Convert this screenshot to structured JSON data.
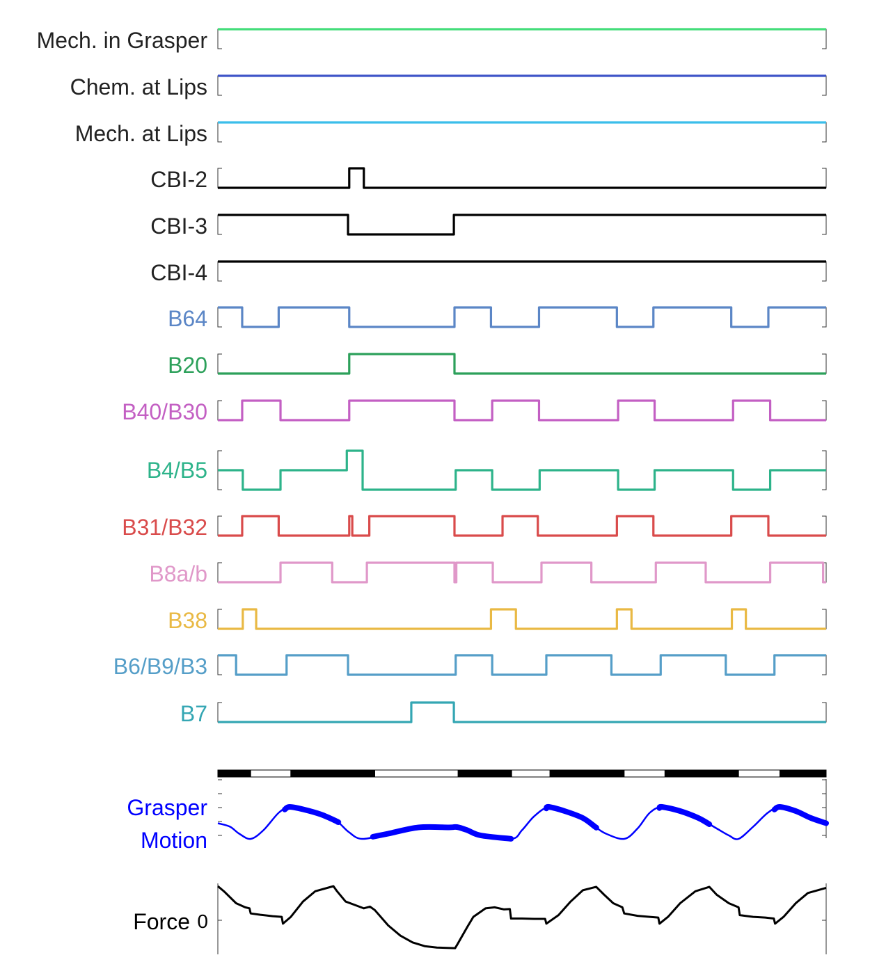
{
  "chart_data": {
    "type": "line",
    "subtype": "stacked binary traces with continuous bottom panels",
    "x_range": [
      0,
      1
    ],
    "series": [
      {
        "name": "Mech. in Grasper",
        "color": "#44dd7a",
        "kind": "binary",
        "states": [
          [
            0.0,
            1
          ]
        ]
      },
      {
        "name": "Chem. at Lips",
        "color": "#3f55c8",
        "kind": "binary",
        "states": [
          [
            0.0,
            1
          ]
        ]
      },
      {
        "name": "Mech. at Lips",
        "color": "#3bbeea",
        "kind": "binary",
        "states": [
          [
            0.0,
            1
          ]
        ]
      },
      {
        "name": "CBI-2",
        "color": "#000000",
        "kind": "binary",
        "states": [
          [
            0.0,
            0
          ],
          [
            0.216,
            1
          ],
          [
            0.24,
            0
          ]
        ]
      },
      {
        "name": "CBI-3",
        "color": "#000000",
        "kind": "binary",
        "states": [
          [
            0.0,
            1
          ],
          [
            0.214,
            0
          ],
          [
            0.388,
            1
          ]
        ]
      },
      {
        "name": "CBI-4",
        "color": "#000000",
        "kind": "binary",
        "states": [
          [
            0.0,
            1
          ]
        ]
      },
      {
        "name": "B64",
        "color": "#5b86c6",
        "kind": "binary",
        "states": [
          [
            0.0,
            1
          ],
          [
            0.04,
            0
          ],
          [
            0.1,
            1
          ],
          [
            0.216,
            0
          ],
          [
            0.389,
            1
          ],
          [
            0.449,
            0
          ],
          [
            0.528,
            1
          ],
          [
            0.656,
            0
          ],
          [
            0.716,
            1
          ],
          [
            0.844,
            0
          ],
          [
            0.905,
            1
          ]
        ]
      },
      {
        "name": "B20",
        "color": "#2ca05a",
        "kind": "binary",
        "states": [
          [
            0.0,
            0
          ],
          [
            0.216,
            1
          ],
          [
            0.389,
            0
          ]
        ]
      },
      {
        "name": "B40/B30",
        "color": "#c35fc3",
        "kind": "binary",
        "states": [
          [
            0.0,
            0
          ],
          [
            0.04,
            1
          ],
          [
            0.103,
            0
          ],
          [
            0.216,
            1
          ],
          [
            0.389,
            0
          ],
          [
            0.451,
            1
          ],
          [
            0.528,
            0
          ],
          [
            0.658,
            1
          ],
          [
            0.718,
            0
          ],
          [
            0.847,
            1
          ],
          [
            0.908,
            0
          ]
        ]
      },
      {
        "name": "B4/B5",
        "color": "#2db38a",
        "kind": "multi",
        "states": [
          [
            0.0,
            1
          ],
          [
            0.041,
            0
          ],
          [
            0.103,
            1
          ],
          [
            0.212,
            2
          ],
          [
            0.238,
            0
          ],
          [
            0.391,
            1
          ],
          [
            0.451,
            0
          ],
          [
            0.529,
            1
          ],
          [
            0.658,
            0
          ],
          [
            0.718,
            1
          ],
          [
            0.847,
            0
          ],
          [
            0.908,
            1
          ]
        ]
      },
      {
        "name": "B31/B32",
        "color": "#d94b4b",
        "kind": "binary",
        "states": [
          [
            0.0,
            0
          ],
          [
            0.04,
            1
          ],
          [
            0.1,
            0
          ],
          [
            0.216,
            1
          ],
          [
            0.221,
            0
          ],
          [
            0.249,
            1
          ],
          [
            0.389,
            0
          ],
          [
            0.468,
            1
          ],
          [
            0.526,
            0
          ],
          [
            0.656,
            1
          ],
          [
            0.716,
            0
          ],
          [
            0.844,
            1
          ],
          [
            0.905,
            0
          ]
        ]
      },
      {
        "name": "B8a/b",
        "color": "#e098c9",
        "kind": "binary",
        "states": [
          [
            0.0,
            0
          ],
          [
            0.103,
            1
          ],
          [
            0.188,
            0
          ],
          [
            0.245,
            1
          ],
          [
            0.389,
            0
          ],
          [
            0.392,
            1
          ],
          [
            0.452,
            0
          ],
          [
            0.532,
            1
          ],
          [
            0.614,
            0
          ],
          [
            0.72,
            1
          ],
          [
            0.802,
            0
          ],
          [
            0.908,
            1
          ],
          [
            0.995,
            0
          ]
        ]
      },
      {
        "name": "B38",
        "color": "#e9b944",
        "kind": "binary",
        "states": [
          [
            0.0,
            0
          ],
          [
            0.041,
            1
          ],
          [
            0.063,
            0
          ],
          [
            0.449,
            1
          ],
          [
            0.49,
            0
          ],
          [
            0.656,
            1
          ],
          [
            0.68,
            0
          ],
          [
            0.845,
            1
          ],
          [
            0.868,
            0
          ]
        ]
      },
      {
        "name": "B6/B9/B3",
        "color": "#559ec8",
        "kind": "binary",
        "states": [
          [
            0.0,
            1
          ],
          [
            0.03,
            0
          ],
          [
            0.113,
            1
          ],
          [
            0.214,
            0
          ],
          [
            0.391,
            1
          ],
          [
            0.451,
            0
          ],
          [
            0.54,
            1
          ],
          [
            0.647,
            0
          ],
          [
            0.728,
            1
          ],
          [
            0.835,
            0
          ],
          [
            0.915,
            1
          ]
        ]
      },
      {
        "name": "B7",
        "color": "#34a6b3",
        "kind": "binary",
        "states": [
          [
            0.0,
            0
          ],
          [
            0.318,
            1
          ],
          [
            0.388,
            0
          ]
        ]
      }
    ],
    "phase_bar": {
      "colors": {
        "black": "#000000",
        "white": "#ffffff"
      },
      "segments": [
        [
          0.0,
          0.054,
          "black"
        ],
        [
          0.054,
          0.12,
          "white"
        ],
        [
          0.12,
          0.258,
          "black"
        ],
        [
          0.258,
          0.395,
          "white"
        ],
        [
          0.395,
          0.483,
          "black"
        ],
        [
          0.483,
          0.546,
          "white"
        ],
        [
          0.546,
          0.668,
          "black"
        ],
        [
          0.668,
          0.735,
          "white"
        ],
        [
          0.735,
          0.856,
          "black"
        ],
        [
          0.856,
          0.924,
          "white"
        ],
        [
          0.924,
          1.0,
          "black"
        ]
      ]
    },
    "grasper_motion": {
      "name": "Grasper Motion",
      "color": "#0000ff",
      "y_range": [
        0,
        1
      ],
      "points": [
        [
          0.0,
          0.45
        ],
        [
          0.02,
          0.35
        ],
        [
          0.035,
          0.15
        ],
        [
          0.054,
          0.0
        ],
        [
          0.075,
          0.25
        ],
        [
          0.1,
          0.75
        ],
        [
          0.118,
          0.92
        ],
        [
          0.14,
          0.85
        ],
        [
          0.17,
          0.7
        ],
        [
          0.196,
          0.5
        ],
        [
          0.215,
          0.2
        ],
        [
          0.237,
          0.0
        ],
        [
          0.28,
          0.15
        ],
        [
          0.33,
          0.33
        ],
        [
          0.38,
          0.33
        ],
        [
          0.393,
          0.34
        ],
        [
          0.41,
          0.25
        ],
        [
          0.432,
          0.1
        ],
        [
          0.483,
          0.0
        ],
        [
          0.5,
          0.25
        ],
        [
          0.52,
          0.65
        ],
        [
          0.544,
          0.92
        ],
        [
          0.57,
          0.8
        ],
        [
          0.6,
          0.6
        ],
        [
          0.62,
          0.35
        ],
        [
          0.638,
          0.15
        ],
        [
          0.668,
          0.0
        ],
        [
          0.69,
          0.3
        ],
        [
          0.71,
          0.75
        ],
        [
          0.73,
          0.92
        ],
        [
          0.76,
          0.8
        ],
        [
          0.79,
          0.6
        ],
        [
          0.82,
          0.3
        ],
        [
          0.84,
          0.1
        ],
        [
          0.856,
          0.0
        ],
        [
          0.88,
          0.35
        ],
        [
          0.904,
          0.75
        ],
        [
          0.924,
          0.92
        ],
        [
          0.95,
          0.8
        ],
        [
          0.975,
          0.6
        ],
        [
          1.0,
          0.45
        ]
      ],
      "thick_ranges": [
        [
          0.11,
          0.197
        ],
        [
          0.255,
          0.482
        ],
        [
          0.54,
          0.622
        ],
        [
          0.726,
          0.808
        ],
        [
          0.915,
          1.0
        ]
      ]
    },
    "force": {
      "name": "Force",
      "color": "#000000",
      "zero_label": "0",
      "y_range": [
        -1,
        1
      ],
      "points": [
        [
          0.0,
          1.0
        ],
        [
          0.01,
          0.85
        ],
        [
          0.03,
          0.5
        ],
        [
          0.045,
          0.38
        ],
        [
          0.052,
          0.35
        ],
        [
          0.054,
          0.2
        ],
        [
          0.07,
          0.16
        ],
        [
          0.09,
          0.12
        ],
        [
          0.105,
          0.1
        ],
        [
          0.107,
          -0.1
        ],
        [
          0.12,
          0.1
        ],
        [
          0.14,
          0.55
        ],
        [
          0.16,
          0.85
        ],
        [
          0.19,
          1.0
        ],
        [
          0.196,
          0.85
        ],
        [
          0.21,
          0.55
        ],
        [
          0.24,
          0.35
        ],
        [
          0.25,
          0.4
        ],
        [
          0.258,
          0.3
        ],
        [
          0.28,
          -0.15
        ],
        [
          0.3,
          -0.45
        ],
        [
          0.32,
          -0.65
        ],
        [
          0.34,
          -0.76
        ],
        [
          0.36,
          -0.8
        ],
        [
          0.39,
          -0.82
        ],
        [
          0.394,
          -0.7
        ],
        [
          0.41,
          -0.2
        ],
        [
          0.42,
          0.1
        ],
        [
          0.44,
          0.35
        ],
        [
          0.455,
          0.38
        ],
        [
          0.47,
          0.32
        ],
        [
          0.48,
          0.33
        ],
        [
          0.482,
          0.05
        ],
        [
          0.5,
          0.05
        ],
        [
          0.52,
          0.04
        ],
        [
          0.538,
          0.04
        ],
        [
          0.54,
          -0.1
        ],
        [
          0.56,
          0.15
        ],
        [
          0.58,
          0.55
        ],
        [
          0.6,
          0.88
        ],
        [
          0.622,
          0.98
        ],
        [
          0.635,
          0.75
        ],
        [
          0.65,
          0.5
        ],
        [
          0.665,
          0.38
        ],
        [
          0.668,
          0.2
        ],
        [
          0.69,
          0.13
        ],
        [
          0.71,
          0.1
        ],
        [
          0.724,
          0.08
        ],
        [
          0.726,
          -0.1
        ],
        [
          0.74,
          0.1
        ],
        [
          0.76,
          0.5
        ],
        [
          0.785,
          0.85
        ],
        [
          0.808,
          0.98
        ],
        [
          0.82,
          0.75
        ],
        [
          0.84,
          0.5
        ],
        [
          0.856,
          0.38
        ],
        [
          0.858,
          0.15
        ],
        [
          0.88,
          0.1
        ],
        [
          0.9,
          0.08
        ],
        [
          0.914,
          0.05
        ],
        [
          0.916,
          -0.1
        ],
        [
          0.93,
          0.1
        ],
        [
          0.95,
          0.5
        ],
        [
          0.97,
          0.8
        ],
        [
          1.0,
          0.95
        ]
      ]
    }
  },
  "labels": {
    "grasper_line1": "Grasper",
    "grasper_line2": "Motion",
    "force_label": "Force"
  }
}
